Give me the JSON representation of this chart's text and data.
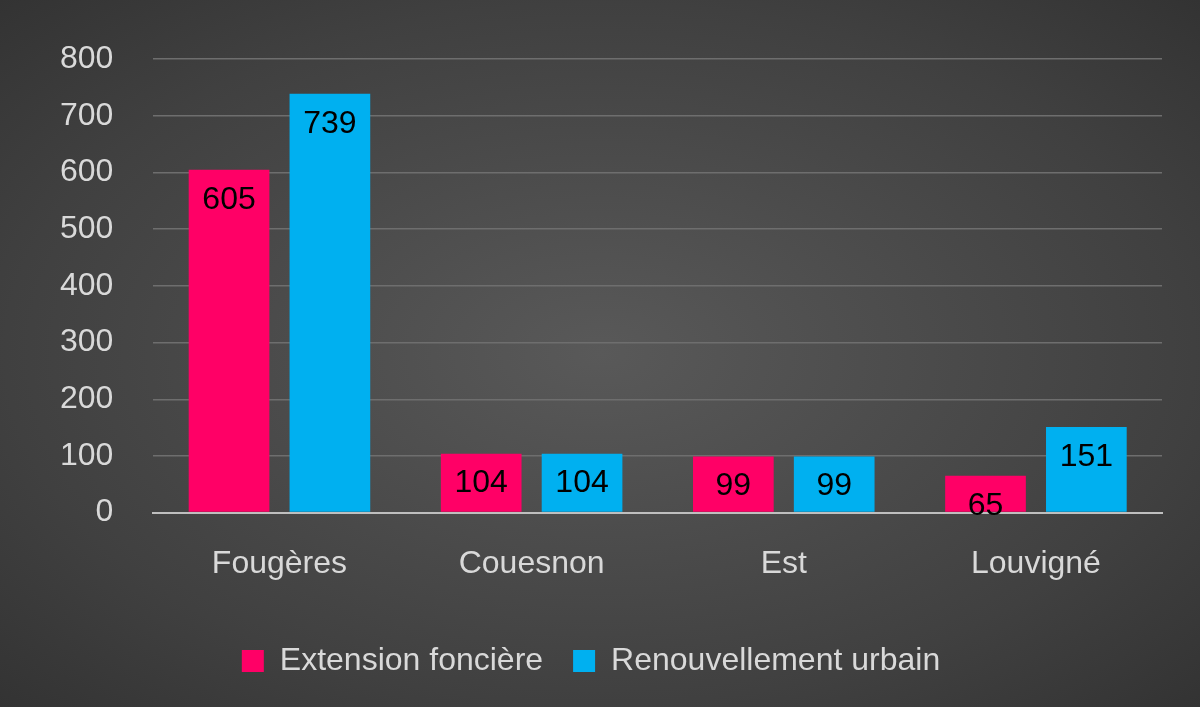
{
  "chart_data": {
    "type": "bar",
    "categories": [
      "Fougères",
      "Couesnon",
      "Est",
      "Louvigné"
    ],
    "series": [
      {
        "name": "Extension foncière",
        "color": "#ff0066",
        "values": [
          605,
          104,
          99,
          65
        ]
      },
      {
        "name": "Renouvellement urbain",
        "color": "#00b0f0",
        "values": [
          739,
          104,
          99,
          151
        ]
      }
    ],
    "ylim": [
      0,
      800
    ],
    "yticks": [
      0,
      100,
      200,
      300,
      400,
      500,
      600,
      700,
      800
    ],
    "grid": "y",
    "legend": "bottom",
    "data_labels": true
  }
}
